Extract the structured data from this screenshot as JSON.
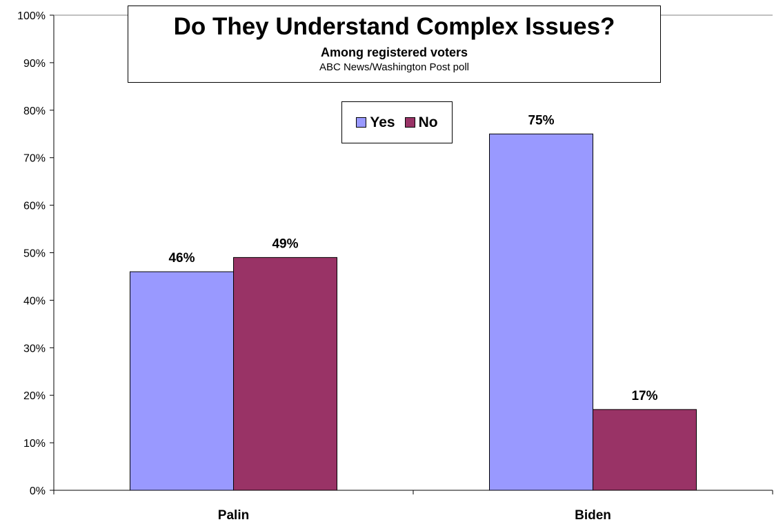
{
  "chart_data": {
    "type": "bar",
    "title": "Do They Understand Complex Issues?",
    "subtitle": "Among registered voters",
    "source": "ABC News/Washington Post poll",
    "categories": [
      "Palin",
      "Biden"
    ],
    "series": [
      {
        "name": "Yes",
        "color": "#9999FF",
        "values": [
          46,
          75
        ],
        "labels": [
          "46%",
          "75%"
        ]
      },
      {
        "name": "No",
        "color": "#993366",
        "values": [
          49,
          17
        ],
        "labels": [
          "49%",
          "17%"
        ]
      }
    ],
    "ylim": [
      0,
      100
    ],
    "yticks": [
      0,
      10,
      20,
      30,
      40,
      50,
      60,
      70,
      80,
      90,
      100
    ],
    "ytick_labels": [
      "0%",
      "10%",
      "20%",
      "30%",
      "40%",
      "50%",
      "60%",
      "70%",
      "80%",
      "90%",
      "100%"
    ],
    "xlabel": "",
    "ylabel": "",
    "grid": false,
    "legend_position": "top-center"
  }
}
